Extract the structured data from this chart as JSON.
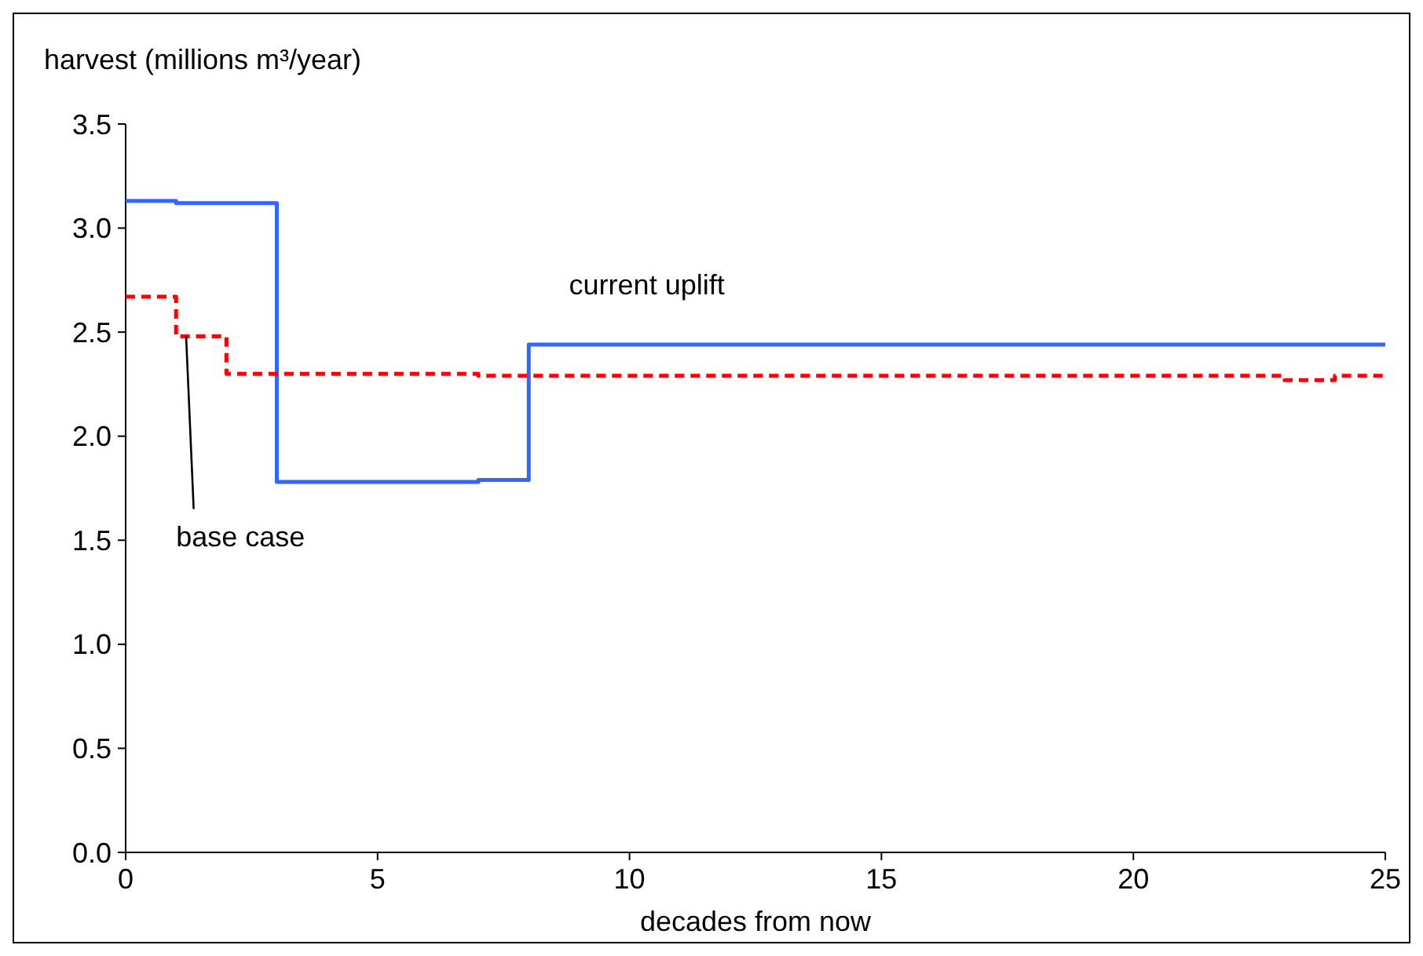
{
  "chart_data": {
    "type": "step",
    "xlabel": "decades from now",
    "ylabel": "harvest (millions m³/year)",
    "xlim": [
      0,
      25
    ],
    "xticks": [
      0,
      5,
      10,
      15,
      20,
      25
    ],
    "ylim": [
      0,
      3.5
    ],
    "yticks": [
      {
        "value": 0,
        "label": "0.0"
      },
      {
        "value": 0.5,
        "label": "0.5"
      },
      {
        "value": 1,
        "label": "1.0"
      },
      {
        "value": 1.5,
        "label": "1.5"
      },
      {
        "value": 2,
        "label": "2.0"
      },
      {
        "value": 2.5,
        "label": "2.5"
      },
      {
        "value": 3,
        "label": "3.0"
      },
      {
        "value": 3.5,
        "label": "3.5"
      }
    ],
    "grid": false,
    "series": [
      {
        "name": "current uplift",
        "color": "#3366ff",
        "line_style": "solid",
        "x": [
          0,
          1,
          3,
          7,
          8,
          25
        ],
        "values": [
          3.13,
          3.12,
          1.78,
          1.79,
          2.44,
          2.44
        ]
      },
      {
        "name": "base case",
        "color": "#ff0000",
        "line_style": "dashed",
        "x": [
          0,
          1,
          2,
          7,
          23,
          24,
          25
        ],
        "values": [
          2.67,
          2.48,
          2.3,
          2.29,
          2.27,
          2.29,
          2.29
        ]
      }
    ]
  }
}
